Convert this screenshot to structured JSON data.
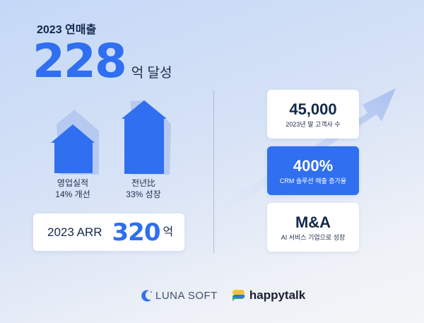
{
  "header": {
    "subtitle": "2023 연매출",
    "value": "228",
    "unit": "억 달성"
  },
  "bars": [
    {
      "line1": "영업실적",
      "line2": "14% 개선"
    },
    {
      "line1": "전년比",
      "line2": "33% 성장"
    }
  ],
  "arr": {
    "label": "2023 ARR",
    "value": "320",
    "unit": "억"
  },
  "cards": [
    {
      "value": "45,000",
      "desc": "2023년 말 고객사 수"
    },
    {
      "value": "400%",
      "desc": "CRM 솔루션 매출 증가율"
    },
    {
      "value": "M&A",
      "desc": "AI 서비스 기업으로 성장"
    }
  ],
  "logos": {
    "luna": "LUNA SOFT",
    "happytalk": "happytalk"
  },
  "colors": {
    "accent": "#2f6ff0",
    "text": "#12284a"
  }
}
